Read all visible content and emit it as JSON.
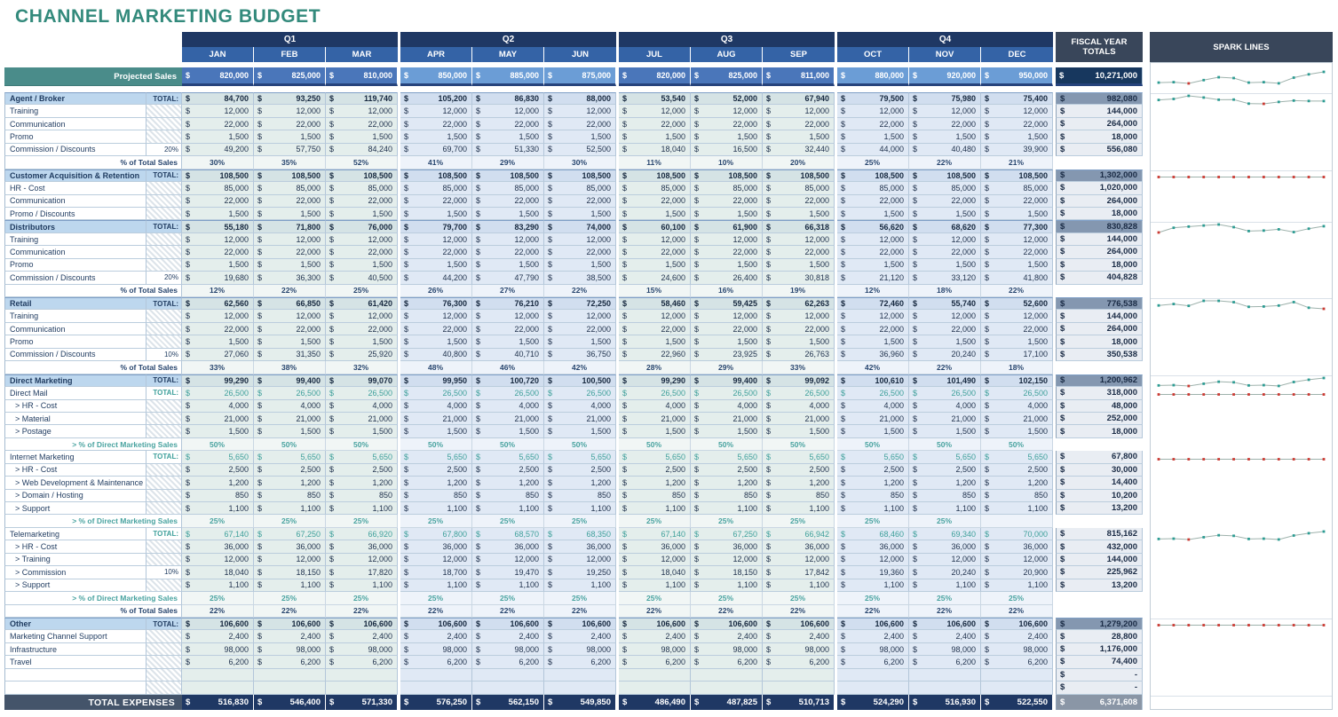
{
  "title": "CHANNEL MARKETING BUDGET",
  "headers": {
    "fiscal": "FISCAL YEAR TOTALS",
    "sparklines": "SPARK LINES",
    "total_label": "TOTAL:"
  },
  "quarters": [
    {
      "label": "Q1",
      "months": [
        "JAN",
        "FEB",
        "MAR"
      ]
    },
    {
      "label": "Q2",
      "months": [
        "APR",
        "MAY",
        "JUN"
      ]
    },
    {
      "label": "Q3",
      "months": [
        "JUL",
        "AUG",
        "SEP"
      ]
    },
    {
      "label": "Q4",
      "months": [
        "OCT",
        "NOV",
        "DEC"
      ]
    }
  ],
  "projected_sales": {
    "label": "Projected Sales",
    "values": [
      820000,
      825000,
      810000,
      850000,
      885000,
      875000,
      820000,
      825000,
      811000,
      880000,
      920000,
      950000
    ],
    "total": 10271000
  },
  "rows": [
    {
      "kind": "section",
      "label": "Agent / Broker",
      "gutter": "TOTAL:",
      "values": [
        84700,
        93250,
        119740,
        105200,
        86830,
        88000,
        53540,
        52000,
        67940,
        79500,
        75980,
        75400
      ],
      "total": 982080,
      "spark": true
    },
    {
      "kind": "detail",
      "label": "Training",
      "values": 12000,
      "total": 144000
    },
    {
      "kind": "detail",
      "label": "Communication",
      "values": 22000,
      "total": 264000
    },
    {
      "kind": "detail",
      "label": "Promo",
      "values": 1500,
      "total": 18000
    },
    {
      "kind": "detail",
      "label": "Commission / Discounts",
      "gutter": "20%",
      "values": [
        49200,
        57750,
        84240,
        69700,
        51330,
        52500,
        18040,
        16500,
        32440,
        44000,
        40480,
        39900
      ],
      "total": 556080
    },
    {
      "kind": "percent",
      "label": "% of Total Sales",
      "values": [
        "30%",
        "35%",
        "52%",
        "41%",
        "29%",
        "30%",
        "11%",
        "10%",
        "20%",
        "25%",
        "22%",
        "21%"
      ]
    },
    {
      "kind": "section",
      "label": "Customer Acquisition & Retention",
      "gutter": "TOTAL:",
      "values": 108500,
      "total": 1302000,
      "spark": true
    },
    {
      "kind": "detail",
      "label": "HR - Cost",
      "values": 85000,
      "total": 1020000
    },
    {
      "kind": "detail",
      "label": "Communication",
      "values": 22000,
      "total": 264000
    },
    {
      "kind": "detail",
      "label": "Promo / Discounts",
      "values": 1500,
      "total": 18000
    },
    {
      "kind": "section",
      "label": "Distributors",
      "gutter": "TOTAL:",
      "values": [
        55180,
        71800,
        76000,
        79700,
        83290,
        74000,
        60100,
        61900,
        66318,
        56620,
        68620,
        77300
      ],
      "total": 830828,
      "spark": true
    },
    {
      "kind": "detail",
      "label": "Training",
      "values": 12000,
      "total": 144000
    },
    {
      "kind": "detail",
      "label": "Communication",
      "values": 22000,
      "total": 264000
    },
    {
      "kind": "detail",
      "label": "Promo",
      "values": 1500,
      "total": 18000
    },
    {
      "kind": "detail",
      "label": "Commission / Discounts",
      "gutter": "20%",
      "values": [
        19680,
        36300,
        40500,
        44200,
        47790,
        38500,
        24600,
        26400,
        30818,
        21120,
        33120,
        41800
      ],
      "total": 404828
    },
    {
      "kind": "percent",
      "label": "% of Total Sales",
      "values": [
        "12%",
        "22%",
        "25%",
        "26%",
        "27%",
        "22%",
        "15%",
        "16%",
        "19%",
        "12%",
        "18%",
        "22%"
      ]
    },
    {
      "kind": "section",
      "label": "Retail",
      "gutter": "TOTAL:",
      "values": [
        62560,
        66850,
        61420,
        76300,
        76210,
        72250,
        58460,
        59425,
        62263,
        72460,
        55740,
        52600
      ],
      "total": 776538,
      "spark": true
    },
    {
      "kind": "detail",
      "label": "Training",
      "values": 12000,
      "total": 144000
    },
    {
      "kind": "detail",
      "label": "Communication",
      "values": 22000,
      "total": 264000
    },
    {
      "kind": "detail",
      "label": "Promo",
      "values": 1500,
      "total": 18000
    },
    {
      "kind": "detail",
      "label": "Commission / Discounts",
      "gutter": "10%",
      "values": [
        27060,
        31350,
        25920,
        40800,
        40710,
        36750,
        22960,
        23925,
        26763,
        36960,
        20240,
        17100
      ],
      "total": 350538
    },
    {
      "kind": "percent",
      "label": "% of Total Sales",
      "values": [
        "33%",
        "38%",
        "32%",
        "48%",
        "46%",
        "42%",
        "28%",
        "29%",
        "33%",
        "42%",
        "22%",
        "18%"
      ]
    },
    {
      "kind": "section",
      "label": "Direct Marketing",
      "gutter": "TOTAL:",
      "values": [
        99290,
        99400,
        99070,
        99950,
        100720,
        100500,
        99290,
        99400,
        99092,
        100610,
        101490,
        102150
      ],
      "total": 1200962,
      "spark": true
    },
    {
      "kind": "subsection",
      "label": "Direct Mail",
      "gutter": "TOTAL:",
      "values": 26500,
      "total": 318000,
      "spark": true
    },
    {
      "kind": "detail",
      "label": "> HR - Cost",
      "values": 4000,
      "total": 48000
    },
    {
      "kind": "detail",
      "label": "> Material",
      "values": 21000,
      "total": 252000
    },
    {
      "kind": "detail",
      "label": "> Postage",
      "values": 1500,
      "total": 18000
    },
    {
      "kind": "percent-teal",
      "label": "> % of Direct Marketing Sales",
      "values": "50%"
    },
    {
      "kind": "subsection",
      "label": "Internet Marketing",
      "gutter": "TOTAL:",
      "values": 5650,
      "total": 67800,
      "spark": true
    },
    {
      "kind": "detail",
      "label": "> HR - Cost",
      "values": 2500,
      "total": 30000
    },
    {
      "kind": "detail",
      "label": "> Web Development & Maintenance",
      "values": 1200,
      "total": 14400
    },
    {
      "kind": "detail",
      "label": "> Domain / Hosting",
      "values": 850,
      "total": 10200
    },
    {
      "kind": "detail",
      "label": "> Support",
      "values": 1100,
      "total": 13200
    },
    {
      "kind": "percent-teal",
      "label": "> % of Direct Marketing Sales",
      "values": [
        "25%",
        "25%",
        "25%",
        "25%",
        "25%",
        "25%",
        "25%",
        "25%",
        "25%",
        "25%",
        "25%",
        ""
      ]
    },
    {
      "kind": "subsection",
      "label": "Telemarketing",
      "gutter": "TOTAL:",
      "values": [
        67140,
        67250,
        66920,
        67800,
        68570,
        68350,
        67140,
        67250,
        66942,
        68460,
        69340,
        70000
      ],
      "total": 815162,
      "spark": true
    },
    {
      "kind": "detail",
      "label": "> HR - Cost",
      "values": 36000,
      "total": 432000
    },
    {
      "kind": "detail",
      "label": "> Training",
      "values": 12000,
      "total": 144000
    },
    {
      "kind": "detail",
      "label": "> Commission",
      "gutter": "10%",
      "values": [
        18040,
        18150,
        17820,
        18700,
        19470,
        19250,
        18040,
        18150,
        17842,
        19360,
        20240,
        20900
      ],
      "total": 225962
    },
    {
      "kind": "detail",
      "label": "> Support",
      "values": 1100,
      "total": 13200
    },
    {
      "kind": "percent-teal",
      "label": "> % of Direct Marketing Sales",
      "values": "25%"
    },
    {
      "kind": "percent",
      "label": "% of Total Sales",
      "values": "22%"
    },
    {
      "kind": "section",
      "label": "Other",
      "gutter": "TOTAL:",
      "values": 106600,
      "total": 1279200,
      "spark": true
    },
    {
      "kind": "detail",
      "label": "Marketing Channel Support",
      "values": 2400,
      "total": 28800
    },
    {
      "kind": "detail",
      "label": "Infrastructure",
      "values": 98000,
      "total": 1176000
    },
    {
      "kind": "detail",
      "label": "Travel",
      "values": 6200,
      "total": 74400
    },
    {
      "kind": "empty",
      "label": "",
      "total": "-"
    },
    {
      "kind": "empty",
      "label": "",
      "total": "-"
    }
  ],
  "total_expenses": {
    "label": "TOTAL EXPENSES",
    "values": [
      516830,
      546400,
      571330,
      576250,
      562150,
      549850,
      486490,
      487825,
      510713,
      524290,
      516930,
      522550
    ],
    "total": 6371608
  },
  "colors": {
    "title_teal": "#338A7C",
    "quarter_band": "#1F3864",
    "month_band": "#3463A6",
    "header_dark": "#39465A",
    "teal_accent": "#3FA09B",
    "section_blue": "#BDD7EE",
    "fiscal_section": "#8497B0",
    "total_row": "#1F3864",
    "spark_teal": "#2C9C93",
    "spark_red": "#CB3A33",
    "projected_teal": "#4A8C8A"
  }
}
